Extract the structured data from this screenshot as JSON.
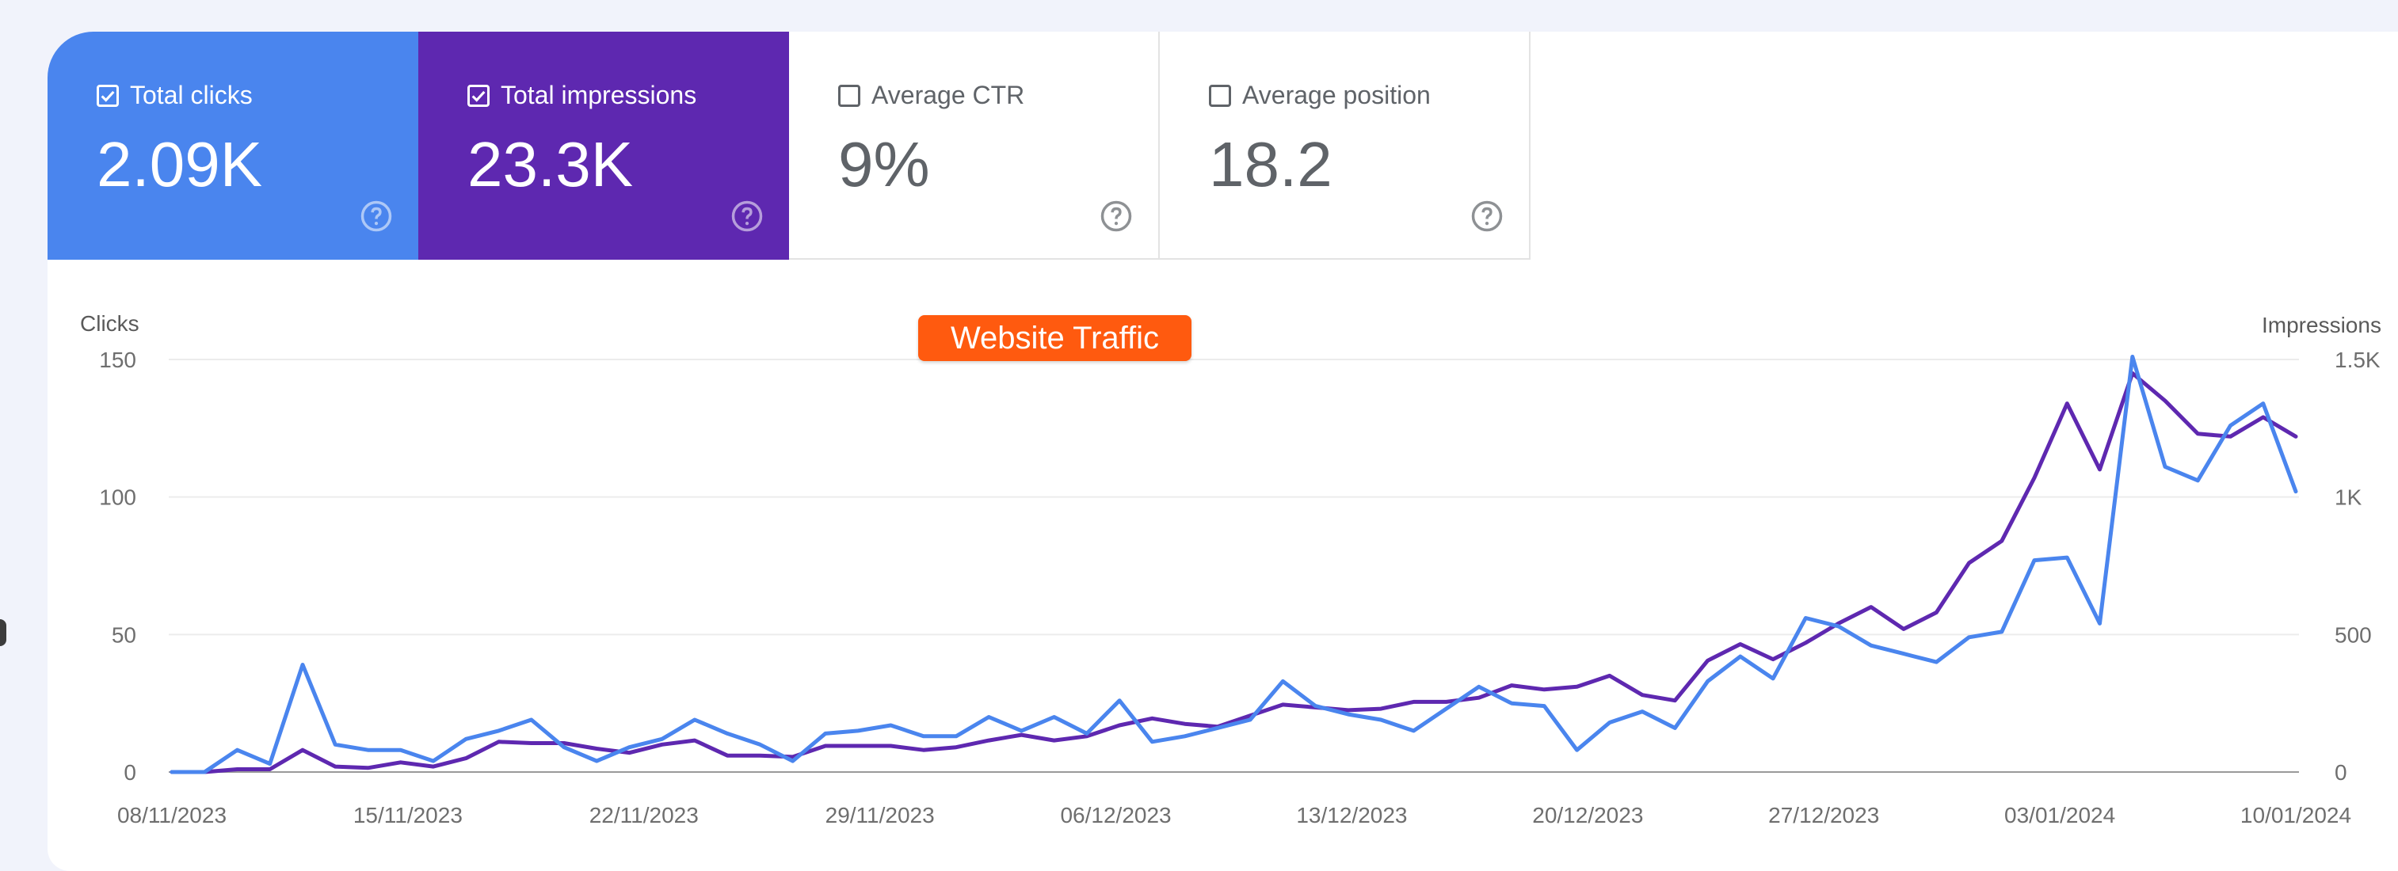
{
  "tiles": [
    {
      "label": "Total clicks",
      "value": "2.09K",
      "checked": true,
      "color": "#4a85ee"
    },
    {
      "label": "Total impressions",
      "value": "23.3K",
      "checked": true,
      "color": "#5e28b0"
    },
    {
      "label": "Average CTR",
      "value": "9%",
      "checked": false
    },
    {
      "label": "Average position",
      "value": "18.2",
      "checked": false
    }
  ],
  "annotation": "Website Traffic",
  "chart_data": {
    "type": "line",
    "left_axis_title": "Clicks",
    "right_axis_title": "Impressions",
    "left_ticks": [
      "150",
      "100",
      "50",
      "0"
    ],
    "right_ticks": [
      "1.5K",
      "1K",
      "500",
      "0"
    ],
    "ylim_left": [
      0,
      150
    ],
    "ylim_right": [
      0,
      1500
    ],
    "x_tick_labels": [
      "08/11/2023",
      "15/11/2023",
      "22/11/2023",
      "29/11/2023",
      "06/12/2023",
      "13/12/2023",
      "20/12/2023",
      "27/12/2023",
      "03/01/2024",
      "10/01/2024"
    ],
    "grid": true,
    "series": [
      {
        "name": "Total clicks",
        "axis": "left",
        "color": "#4a85ee",
        "values": [
          0,
          0,
          8,
          3,
          39,
          10,
          8,
          8,
          4,
          12,
          15,
          19,
          9,
          4,
          9,
          12,
          19,
          14,
          10,
          4,
          14,
          15,
          17,
          13,
          13,
          20,
          15,
          20,
          14,
          26,
          11,
          13,
          16,
          19,
          33,
          24,
          21,
          19,
          15,
          23,
          31,
          25,
          24,
          8,
          18,
          22,
          16,
          33,
          42,
          34,
          56,
          53,
          46,
          43,
          40,
          49,
          51,
          77,
          78,
          54,
          151,
          111,
          106,
          126,
          134,
          102
        ]
      },
      {
        "name": "Total impressions",
        "axis": "right",
        "color": "#5e28b0",
        "values": [
          0,
          0,
          10,
          10,
          80,
          20,
          15,
          35,
          20,
          50,
          110,
          105,
          105,
          85,
          70,
          100,
          115,
          60,
          60,
          55,
          95,
          95,
          95,
          80,
          90,
          115,
          135,
          115,
          130,
          170,
          195,
          175,
          165,
          205,
          245,
          235,
          225,
          230,
          255,
          255,
          270,
          315,
          300,
          310,
          350,
          280,
          260,
          405,
          465,
          410,
          470,
          540,
          600,
          520,
          580,
          760,
          840,
          1070,
          1340,
          1100,
          1450,
          1350,
          1230,
          1220,
          1290,
          1220
        ]
      }
    ]
  }
}
